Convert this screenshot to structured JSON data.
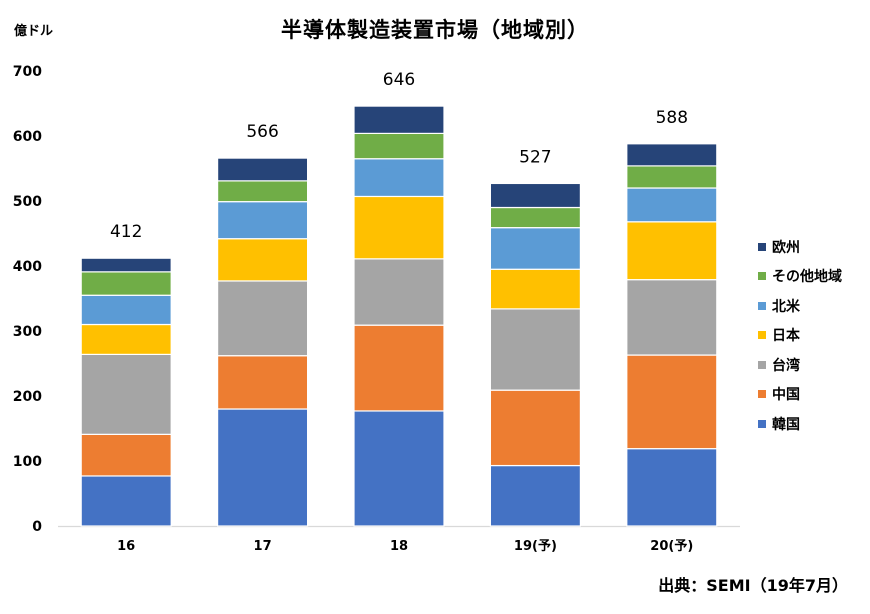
{
  "chart_data": {
    "type": "bar",
    "stacked": true,
    "title": "半導体製造装置市場（地域別）",
    "ylabel": "億ドル",
    "xlabel": "",
    "ylim": [
      0,
      700
    ],
    "yticks": [
      0,
      100,
      200,
      300,
      400,
      500,
      600,
      700
    ],
    "grid": false,
    "legend_position": "right",
    "categories": [
      "16",
      "17",
      "18",
      "19(予)",
      "20(予)"
    ],
    "totals": [
      "412",
      "566",
      "646",
      "527",
      "588"
    ],
    "series": [
      {
        "name": "韓国",
        "color": "#4472C4",
        "values": [
          77,
          180,
          177,
          93,
          119
        ]
      },
      {
        "name": "中国",
        "color": "#ED7D31",
        "values": [
          64,
          82,
          132,
          116,
          144
        ]
      },
      {
        "name": "台湾",
        "color": "#A5A5A5",
        "values": [
          123,
          115,
          102,
          125,
          116
        ]
      },
      {
        "name": "日本",
        "color": "#FFC000",
        "values": [
          46,
          65,
          96,
          61,
          89
        ]
      },
      {
        "name": "北米",
        "color": "#5B9BD5",
        "values": [
          45,
          57,
          58,
          64,
          52
        ]
      },
      {
        "name": "その他地域",
        "color": "#70AD47",
        "values": [
          36,
          32,
          39,
          31,
          34
        ]
      },
      {
        "name": "欧州",
        "color": "#264478",
        "values": [
          21,
          35,
          42,
          37,
          34
        ]
      }
    ],
    "source": "出典：SEMI（19年7月）"
  }
}
